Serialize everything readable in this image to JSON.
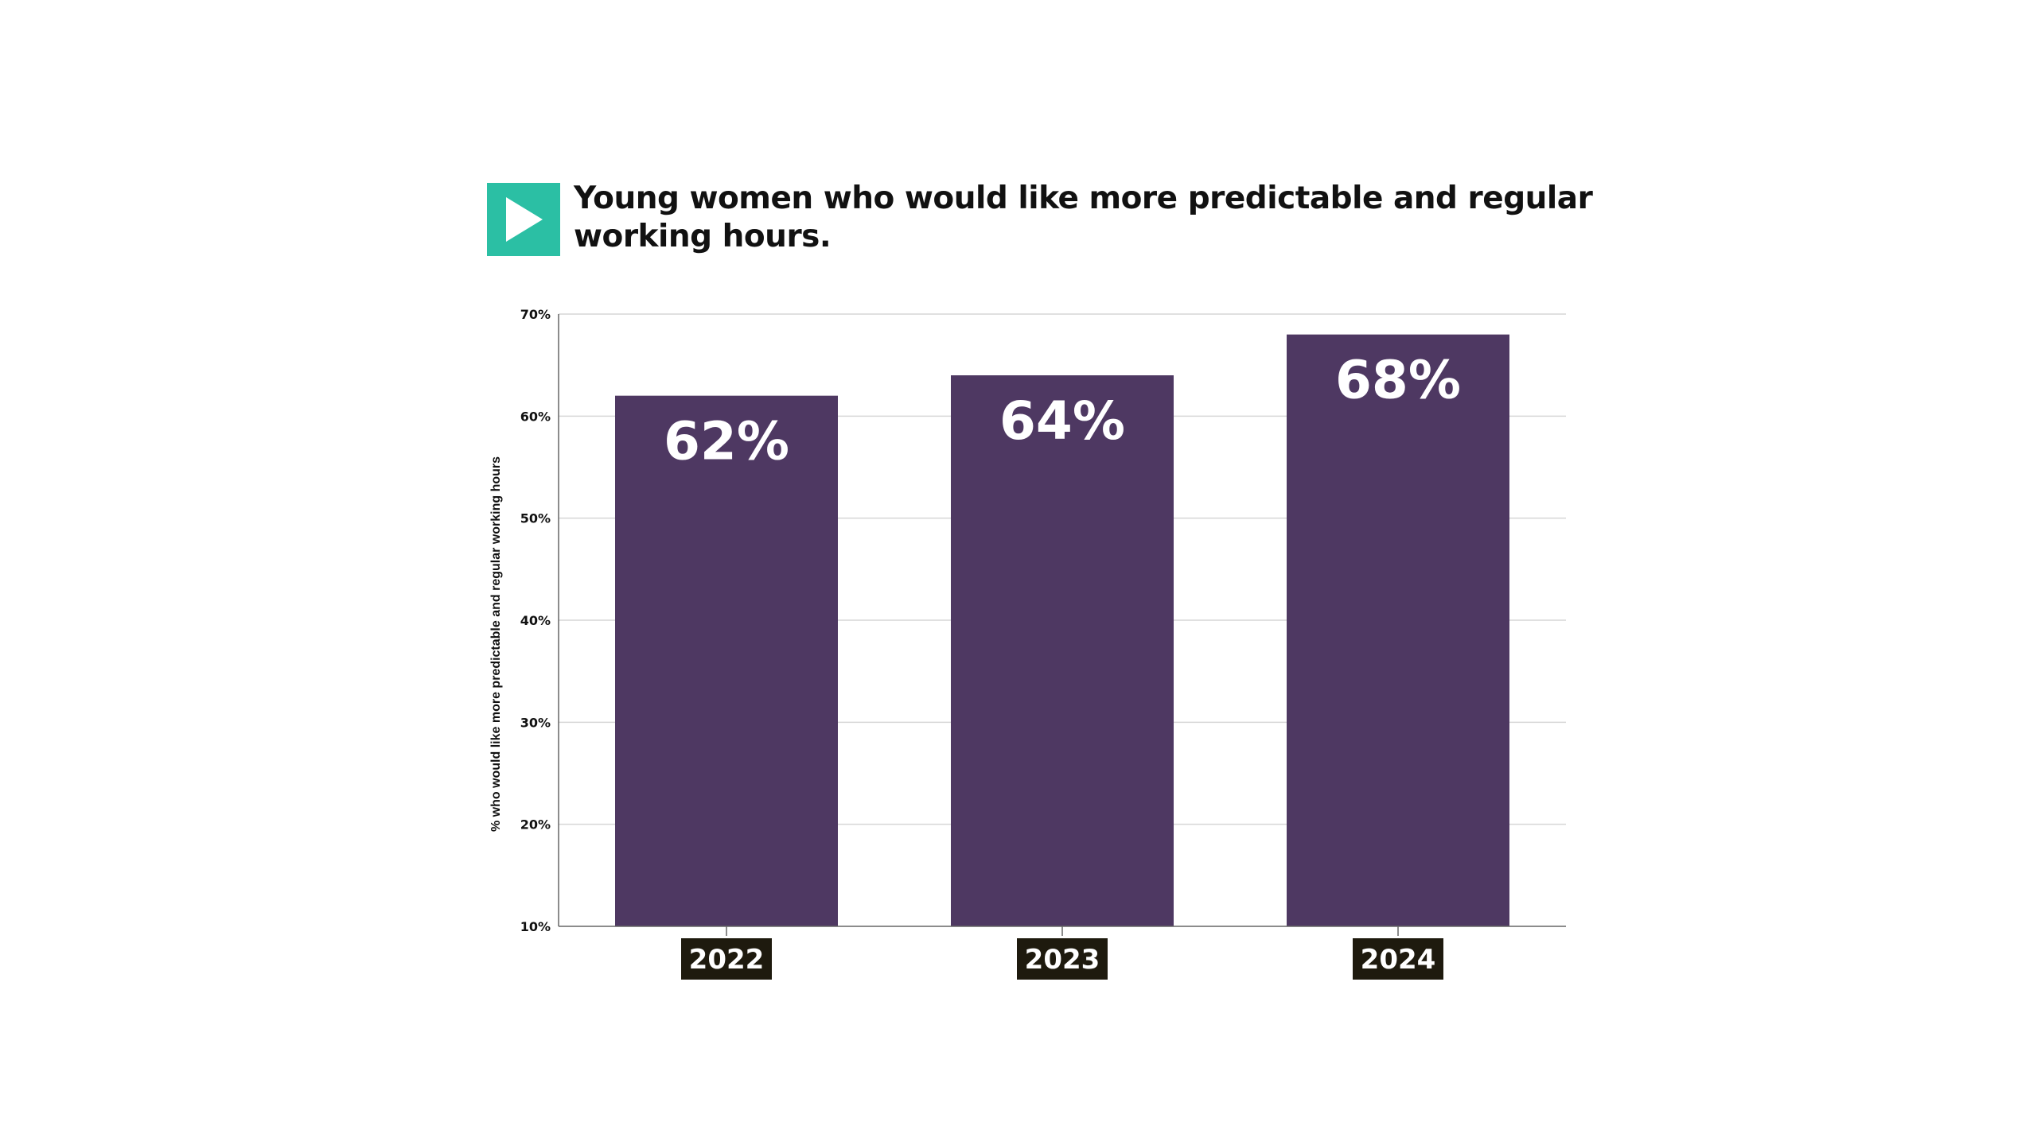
{
  "chart_data": {
    "type": "bar",
    "title": "Young women who would like more predictable and regular working hours.",
    "ylabel": "% who would like more predictable and regular working hours",
    "xlabel": "",
    "categories": [
      "2022",
      "2023",
      "2024"
    ],
    "values": [
      62,
      64,
      68
    ],
    "value_labels": [
      "62%",
      "64%",
      "68%"
    ],
    "ylim": [
      10,
      70
    ],
    "yticks": [
      10,
      20,
      30,
      40,
      50,
      60,
      70
    ],
    "ytick_labels": [
      "10%",
      "20%",
      "30%",
      "40%",
      "50%",
      "60%",
      "70%"
    ],
    "grid": true,
    "legend": "none"
  },
  "colors": {
    "bar": "#4e3862",
    "logo": "#2bbfa4",
    "category_label_bg": "#1e1a0e",
    "grid": "#d6d6d6",
    "axis": "#666666"
  },
  "logo_icon": "play-triangle-icon"
}
